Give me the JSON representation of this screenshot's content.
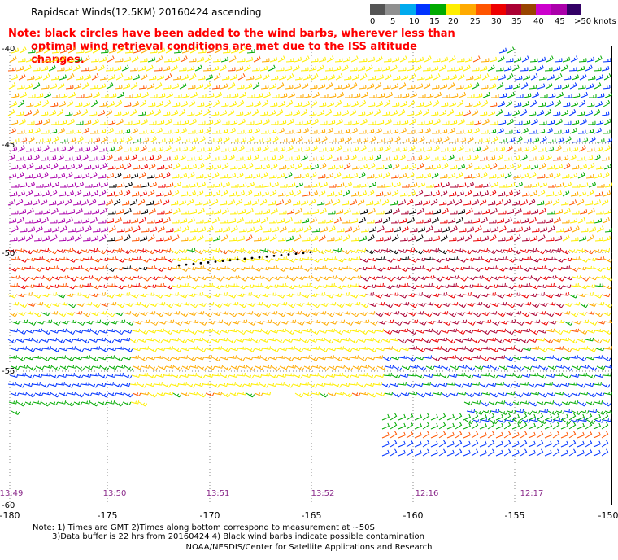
{
  "title": "Rapidscat Winds(12.5KM) 20160424 ascending",
  "colorbar": {
    "labels": [
      "0",
      "5",
      "10",
      "15",
      "20",
      "25",
      "30",
      "35",
      "40",
      "45",
      ">50 knots"
    ],
    "colors": [
      "#555555",
      "#909090",
      "#00aaee",
      "#0033ff",
      "#00aa00",
      "#ffee00",
      "#ffaa00",
      "#ff5500",
      "#ee0000",
      "#aa0033",
      "#994400",
      "#cc00cc",
      "#aa00aa",
      "#330066"
    ]
  },
  "note": {
    "line1": "Note: black circles have been added to the wind barbs, wherever less than",
    "line2": "optimal wind retrieval conditions are met due to the ISS altitude changes."
  },
  "lat_labels": [
    "-40",
    "-45",
    "-50",
    "-55",
    "-60"
  ],
  "lon_labels": [
    "-180",
    "-175",
    "-170",
    "-165",
    "-160",
    "-155",
    "-150"
  ],
  "time_labels": [
    "13:49",
    "13:50",
    "13:51",
    "13:52",
    "12:16",
    "12:17"
  ],
  "footnotes": {
    "line1": "Note: 1) Times are GMT 2)Times along bottom correspond to measurement at ~50S",
    "line2": "3)Data buffer is 22 hrs from 20160424 4) Black wind barbs indicate possible contamination"
  },
  "credit": "NOAA/NESDIS/Center for Satellite Applications and Research"
}
